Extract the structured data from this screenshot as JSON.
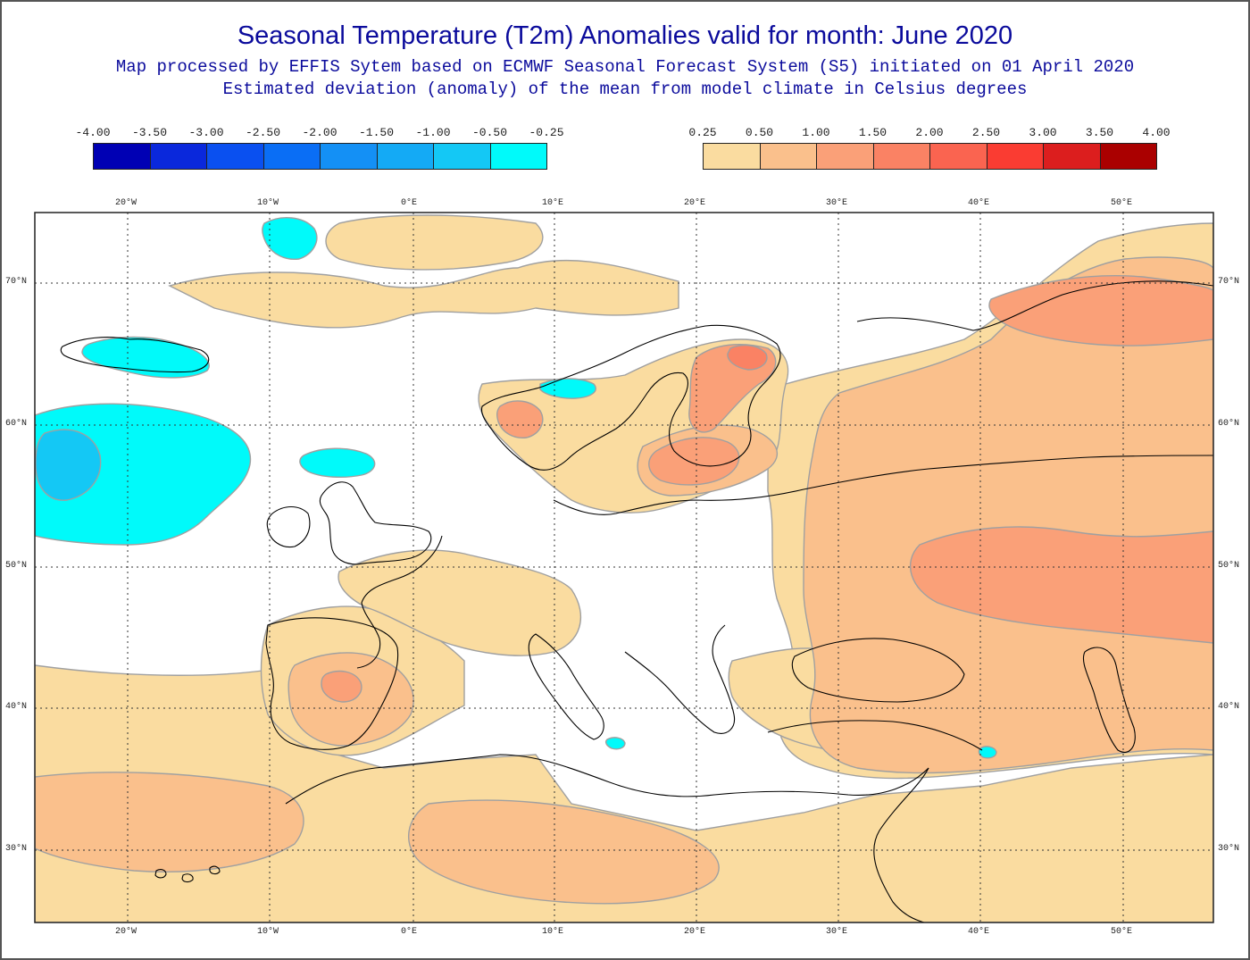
{
  "header": {
    "title": "Seasonal Temperature (T2m) Anomalies valid for month: June 2020",
    "subtitle_1": "Map processed by EFFIS Sytem based on ECMWF Seasonal Forecast System (S5) initiated on 01 April 2020",
    "subtitle_2": "Estimated deviation (anomaly) of the mean from model climate in Celsius degrees"
  },
  "legend": {
    "negative": {
      "ticks": [
        "-4.00",
        "-3.50",
        "-3.00",
        "-2.50",
        "-2.00",
        "-1.50",
        "-1.00",
        "-0.50",
        "-0.25"
      ],
      "colors": [
        "#0000b4",
        "#0a28dc",
        "#0a50f0",
        "#0a6ef5",
        "#1490f5",
        "#14aaf5",
        "#14c8f5",
        "#00fafa"
      ]
    },
    "positive": {
      "ticks": [
        "0.25",
        "0.50",
        "1.00",
        "1.50",
        "2.00",
        "2.50",
        "3.00",
        "3.50",
        "4.00"
      ],
      "colors": [
        "#fadca0",
        "#fac08c",
        "#faa078",
        "#fa8264",
        "#fa6450",
        "#fa3c32",
        "#dc1e1e",
        "#aa0000"
      ]
    }
  },
  "map": {
    "lon_labels": [
      "20°W",
      "10°W",
      "0°E",
      "10°E",
      "20°E",
      "30°E",
      "40°E",
      "50°E"
    ],
    "lat_labels": [
      "70°N",
      "60°N",
      "50°N",
      "40°N",
      "30°N"
    ],
    "colors": {
      "none": "#ffffff",
      "cold": "#00fafa",
      "cold_core": "#14c8f5",
      "warm1": "#fadca0",
      "warm2": "#fac08c",
      "warm3": "#faa078",
      "warm4": "#fa8264",
      "contour": "#a0a0a0",
      "coast": "#000000"
    }
  }
}
